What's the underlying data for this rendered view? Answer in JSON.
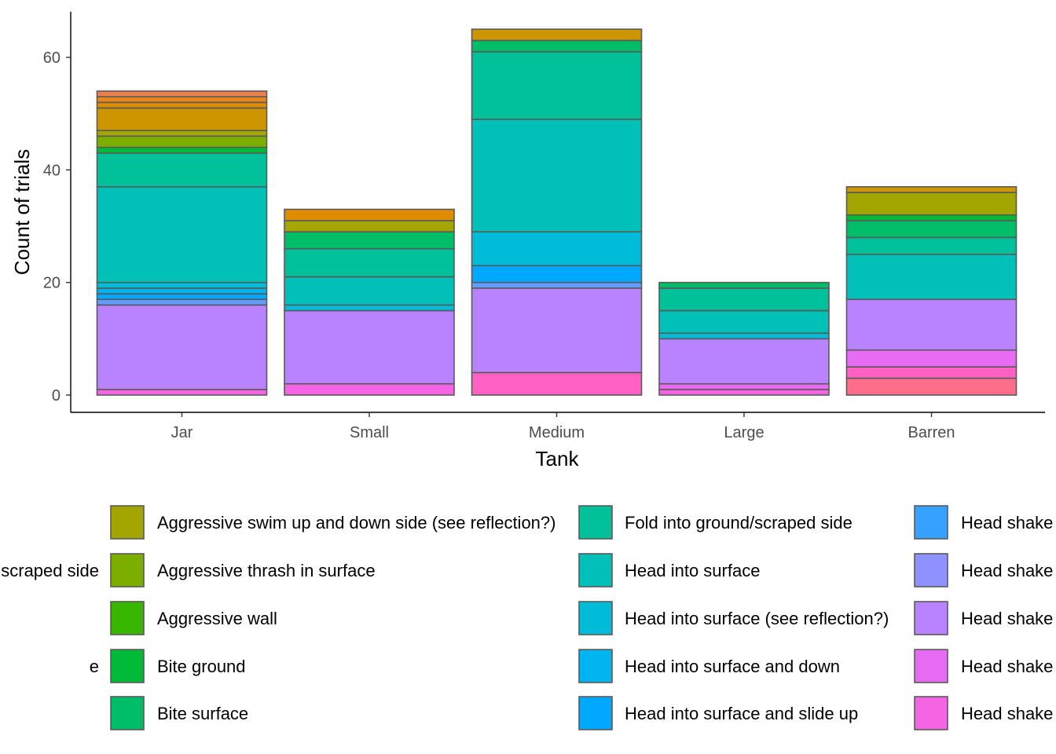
{
  "chart_data": {
    "type": "bar",
    "stacked": true,
    "xlabel": "Tank",
    "ylabel": "Count of trials",
    "categories": [
      "Jar",
      "Small",
      "Medium",
      "Large",
      "Barren"
    ],
    "ylim": [
      0,
      68
    ],
    "yticks": [
      0,
      20,
      40,
      60
    ],
    "grid": false,
    "legend_position": "bottom",
    "bar_outline_color": "#5a5a5a",
    "stacks": [
      {
        "category": "Jar",
        "segments": [
          {
            "value": 1,
            "color": "#f564e3"
          },
          {
            "value": 15,
            "color": "#b983ff"
          },
          {
            "value": 1,
            "color": "#619cff"
          },
          {
            "value": 1,
            "color": "#00a9ff"
          },
          {
            "value": 1,
            "color": "#00b4ef"
          },
          {
            "value": 1,
            "color": "#00bcd8"
          },
          {
            "value": 17,
            "color": "#00c0b8"
          },
          {
            "value": 6,
            "color": "#00c19a"
          },
          {
            "value": 1,
            "color": "#00ba38"
          },
          {
            "value": 2,
            "color": "#7cae00"
          },
          {
            "value": 1,
            "color": "#a3a500"
          },
          {
            "value": 4,
            "color": "#cd9600"
          },
          {
            "value": 1,
            "color": "#de8c00"
          },
          {
            "value": 1,
            "color": "#e7861b"
          },
          {
            "value": 1,
            "color": "#f07e4d"
          }
        ]
      },
      {
        "category": "Small",
        "segments": [
          {
            "value": 2,
            "color": "#f564e3"
          },
          {
            "value": 13,
            "color": "#b983ff"
          },
          {
            "value": 1,
            "color": "#00bcd8"
          },
          {
            "value": 5,
            "color": "#00c0b8"
          },
          {
            "value": 5,
            "color": "#00c19a"
          },
          {
            "value": 3,
            "color": "#00be67"
          },
          {
            "value": 2,
            "color": "#a3a500"
          },
          {
            "value": 2,
            "color": "#de8c00"
          }
        ]
      },
      {
        "category": "Medium",
        "segments": [
          {
            "value": 4,
            "color": "#ff61c3"
          },
          {
            "value": 15,
            "color": "#b983ff"
          },
          {
            "value": 1,
            "color": "#619cff"
          },
          {
            "value": 3,
            "color": "#00a9ff"
          },
          {
            "value": 6,
            "color": "#00bcd8"
          },
          {
            "value": 20,
            "color": "#00c0b8"
          },
          {
            "value": 12,
            "color": "#00c19a"
          },
          {
            "value": 2,
            "color": "#00be67"
          },
          {
            "value": 2,
            "color": "#cd9600"
          }
        ]
      },
      {
        "category": "Large",
        "segments": [
          {
            "value": 1,
            "color": "#f564e3"
          },
          {
            "value": 1,
            "color": "#e76bf3"
          },
          {
            "value": 8,
            "color": "#b983ff"
          },
          {
            "value": 1,
            "color": "#00bcd8"
          },
          {
            "value": 4,
            "color": "#00c0b8"
          },
          {
            "value": 4,
            "color": "#00c19a"
          },
          {
            "value": 1,
            "color": "#00be67"
          }
        ]
      },
      {
        "category": "Barren",
        "segments": [
          {
            "value": 3,
            "color": "#fe6e8a"
          },
          {
            "value": 2,
            "color": "#ff61c3"
          },
          {
            "value": 3,
            "color": "#e76bf3"
          },
          {
            "value": 9,
            "color": "#b983ff"
          },
          {
            "value": 8,
            "color": "#00c0b8"
          },
          {
            "value": 3,
            "color": "#00c19a"
          },
          {
            "value": 3,
            "color": "#00be67"
          },
          {
            "value": 1,
            "color": "#00ba38"
          },
          {
            "value": 4,
            "color": "#a3a500"
          },
          {
            "value": 1,
            "color": "#cd9600"
          }
        ]
      }
    ],
    "legend_columns": [
      [
        {
          "label": "scraped side",
          "color": null
        },
        {
          "label": "e",
          "color": null
        }
      ],
      [
        {
          "label": "Aggressive swim up and down side (see reflection?)",
          "color": "#a3a500"
        },
        {
          "label": "Aggressive thrash in surface",
          "color": "#7cae00"
        },
        {
          "label": "Aggressive wall",
          "color": "#39b600"
        },
        {
          "label": "Bite ground",
          "color": "#00ba38"
        },
        {
          "label": "Bite surface",
          "color": "#00be67"
        }
      ],
      [
        {
          "label": "Fold into ground/scraped side",
          "color": "#00c19a"
        },
        {
          "label": "Head into surface",
          "color": "#00c0b8"
        },
        {
          "label": "Head into surface (see reflection?)",
          "color": "#00bcd8"
        },
        {
          "label": "Head into surface and down",
          "color": "#00b4ef"
        },
        {
          "label": "Head into surface and slide up",
          "color": "#00a9ff"
        }
      ],
      [
        {
          "label": "Head shake",
          "color": "#35a2ff"
        },
        {
          "label": "Head shake",
          "color": "#8f91ff"
        },
        {
          "label": "Head shake",
          "color": "#b983ff"
        },
        {
          "label": "Head shake",
          "color": "#e76bf3"
        },
        {
          "label": "Head shake",
          "color": "#f564e3"
        }
      ]
    ]
  }
}
